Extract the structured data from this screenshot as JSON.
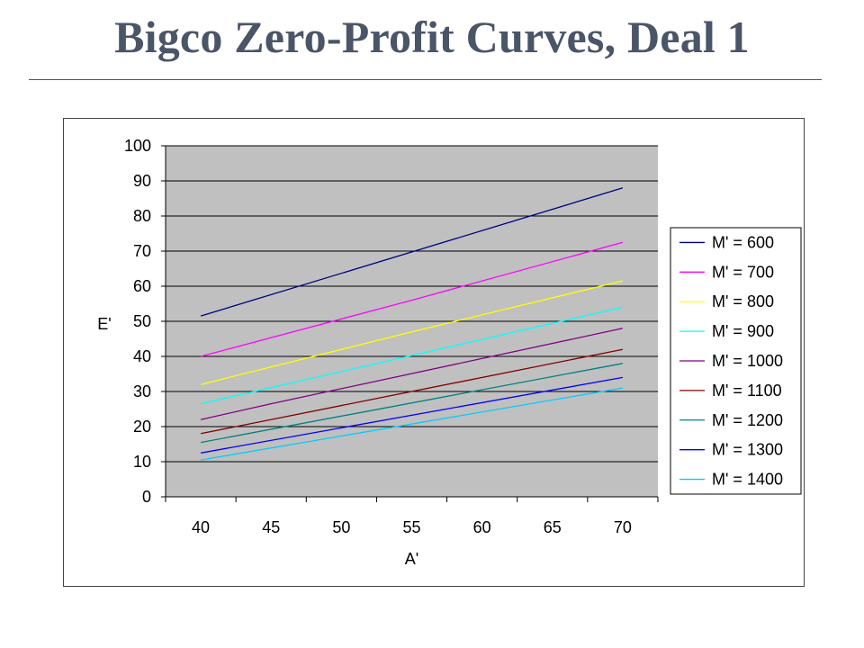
{
  "slide": {
    "title": "Bigco Zero-Profit Curves, Deal 1"
  },
  "colors": {
    "plot_background": "#c0c0c0",
    "gridline": "#000000",
    "title": "#4a5568"
  },
  "chart_data": {
    "type": "line",
    "title": "",
    "xlabel": "A'",
    "ylabel": "E'",
    "categories": [
      40,
      45,
      50,
      55,
      60,
      65,
      70
    ],
    "xlim": [
      40,
      70
    ],
    "ylim": [
      0,
      100
    ],
    "yticks": [
      0,
      10,
      20,
      30,
      40,
      50,
      60,
      70,
      80,
      90,
      100
    ],
    "grid": "horizontal",
    "legend_position": "right",
    "series": [
      {
        "name": "M' = 600",
        "color": "#000080",
        "x": [
          40,
          70
        ],
        "y": [
          51.5,
          88
        ]
      },
      {
        "name": "M' = 700",
        "color": "#ff00ff",
        "x": [
          40,
          55,
          70
        ],
        "y": [
          40,
          56,
          72.5
        ]
      },
      {
        "name": "M' = 800",
        "color": "#ffff00",
        "x": [
          40,
          55,
          70
        ],
        "y": [
          32,
          47,
          61.5
        ]
      },
      {
        "name": "M' = 900",
        "color": "#00ffff",
        "x": [
          40,
          70
        ],
        "y": [
          26.5,
          54
        ]
      },
      {
        "name": "M' = 1000",
        "color": "#800080",
        "x": [
          40,
          45,
          70
        ],
        "y": [
          22,
          26.5,
          48
        ]
      },
      {
        "name": "M' = 1100",
        "color": "#800000",
        "x": [
          40,
          70
        ],
        "y": [
          18,
          42
        ]
      },
      {
        "name": "M' = 1200",
        "color": "#008080",
        "x": [
          40,
          70
        ],
        "y": [
          15.5,
          38
        ]
      },
      {
        "name": "M' = 1300",
        "color": "#0000ff",
        "x": [
          40,
          70
        ],
        "y": [
          12.5,
          34
        ]
      },
      {
        "name": "M' = 1400",
        "color": "#00ccff",
        "x": [
          40,
          70
        ],
        "y": [
          10.5,
          31
        ]
      }
    ]
  }
}
